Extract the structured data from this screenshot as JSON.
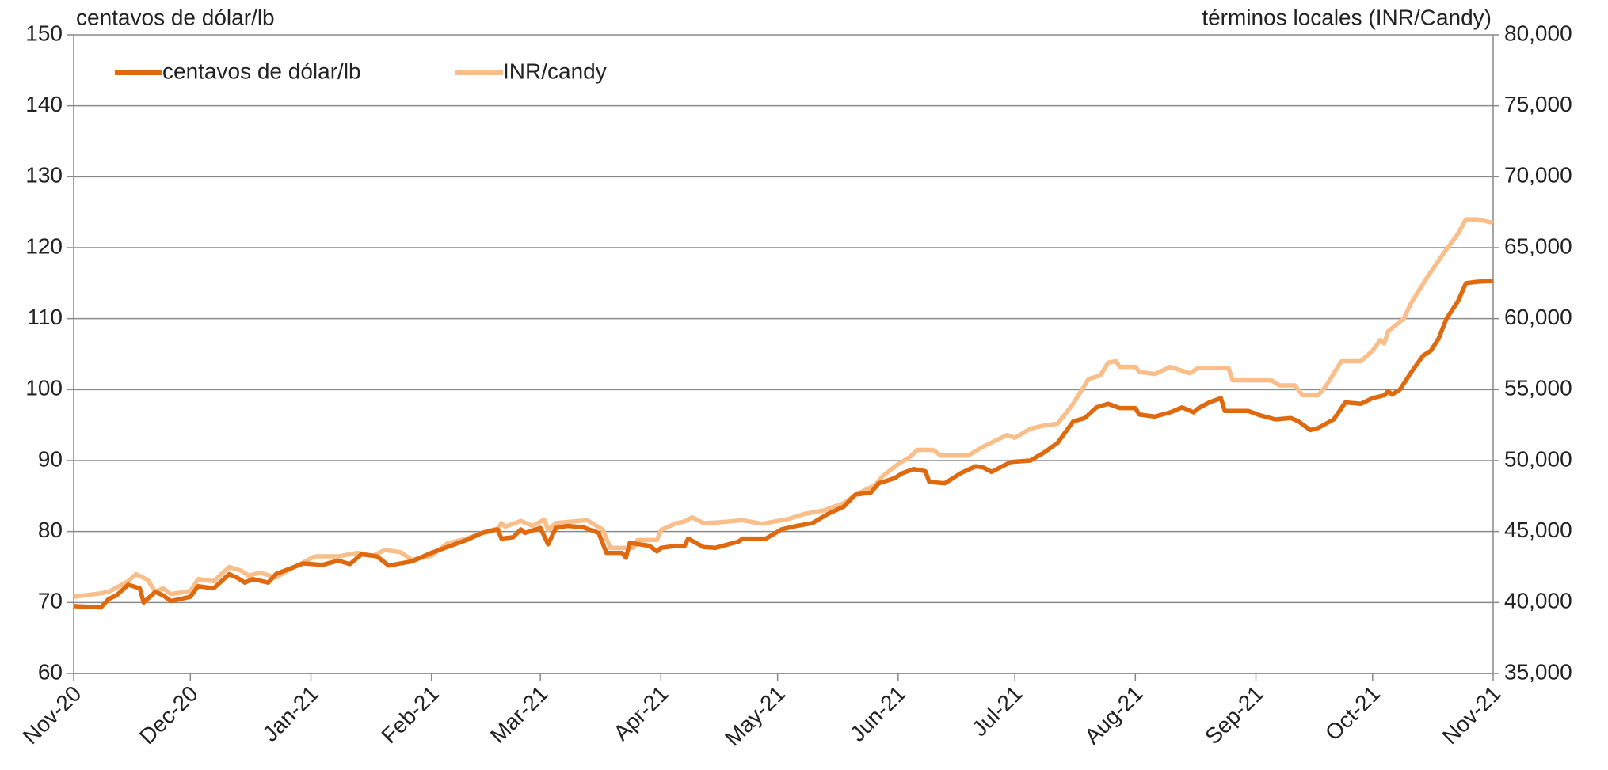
{
  "chart_data": {
    "type": "line",
    "ylabel": "centavos de dólar/lb",
    "y2label": "términos locales (INR/Candy)",
    "xlim": [
      0,
      365
    ],
    "xticks": [
      {
        "value": 0,
        "label": "Nov-20"
      },
      {
        "value": 30,
        "label": "Dec-20"
      },
      {
        "value": 61,
        "label": "Jan-21"
      },
      {
        "value": 92,
        "label": "Feb-21"
      },
      {
        "value": 120,
        "label": "Mar-21"
      },
      {
        "value": 151,
        "label": "Apr-21"
      },
      {
        "value": 181,
        "label": "May-21"
      },
      {
        "value": 212,
        "label": "Jun-21"
      },
      {
        "value": 242,
        "label": "Jul-21"
      },
      {
        "value": 273,
        "label": "Aug-21"
      },
      {
        "value": 304,
        "label": "Sep-21"
      },
      {
        "value": 334,
        "label": "Oct-21"
      },
      {
        "value": 365,
        "label": "Nov-21"
      }
    ],
    "ylim": [
      60,
      150
    ],
    "yticks": [
      60,
      70,
      80,
      90,
      100,
      110,
      120,
      130,
      140,
      150
    ],
    "y2lim": [
      35000,
      80000
    ],
    "y2ticks": [
      {
        "value": 35000,
        "label": "35,000"
      },
      {
        "value": 40000,
        "label": "40,000"
      },
      {
        "value": 45000,
        "label": "45,000"
      },
      {
        "value": 50000,
        "label": "50,000"
      },
      {
        "value": 55000,
        "label": "55,000"
      },
      {
        "value": 60000,
        "label": "60,000"
      },
      {
        "value": 65000,
        "label": "65,000"
      },
      {
        "value": 70000,
        "label": "70,000"
      },
      {
        "value": 75000,
        "label": "75,000"
      },
      {
        "value": 80000,
        "label": "80,000"
      }
    ],
    "grid": true,
    "legend": "upper left",
    "series": [
      {
        "name": "centavos de dólar/lb",
        "color": "#e0690e",
        "axis": "y",
        "x": [
          0,
          7,
          9,
          11,
          14,
          17,
          18,
          21,
          23,
          25,
          30,
          32,
          36,
          40,
          42,
          44,
          46,
          50,
          52,
          59,
          64,
          68,
          71,
          74,
          78,
          81,
          87,
          92,
          97,
          101,
          105,
          109,
          110,
          113,
          115,
          116,
          120,
          122,
          124,
          127,
          131,
          135,
          137,
          141,
          142,
          143,
          148,
          150,
          151,
          155,
          157,
          158,
          162,
          165,
          171,
          172,
          178,
          182,
          186,
          190,
          194,
          198,
          201,
          205,
          207,
          211,
          213,
          216,
          219,
          220,
          224,
          228,
          232,
          234,
          236,
          241,
          246,
          250,
          253,
          257,
          260,
          263,
          266,
          269,
          273,
          274,
          278,
          282,
          285,
          288,
          289,
          292,
          295,
          296,
          302,
          305,
          309,
          313,
          315,
          318,
          320,
          324,
          327,
          331,
          334,
          337,
          338,
          339,
          341,
          344,
          347,
          349,
          351,
          353,
          356,
          358,
          361,
          365
        ],
        "values": [
          69.5,
          69.3,
          70.5,
          71,
          72.5,
          72,
          70,
          71.5,
          71,
          70.2,
          70.8,
          72.3,
          72,
          74,
          73.5,
          72.8,
          73.3,
          72.8,
          74,
          75.5,
          75.3,
          75.9,
          75.4,
          76.8,
          76.5,
          75.2,
          75.8,
          77,
          78,
          78.8,
          79.8,
          80.3,
          79,
          79.2,
          80.3,
          79.8,
          80.5,
          78.2,
          80.5,
          80.8,
          80.6,
          79.8,
          77,
          77,
          76.3,
          78.4,
          78,
          77.2,
          77.7,
          78,
          77.9,
          79,
          77.8,
          77.7,
          78.6,
          79,
          79,
          80.3,
          80.8,
          81.2,
          82.5,
          83.5,
          85.2,
          85.5,
          86.8,
          87.5,
          88.2,
          88.8,
          88.5,
          87,
          86.8,
          88.2,
          89.2,
          89,
          88.4,
          89.8,
          90,
          91.3,
          92.5,
          95.5,
          96,
          97.5,
          98,
          97.4,
          97.4,
          96.5,
          96.2,
          96.8,
          97.5,
          96.8,
          97.3,
          98.2,
          98.8,
          97,
          97,
          96.4,
          95.8,
          96,
          95.5,
          94.3,
          94.6,
          95.8,
          98.2,
          98,
          98.8,
          99.2,
          99.8,
          99.3,
          100,
          102.5,
          104.8,
          105.5,
          107.2,
          110,
          112.5,
          115,
          115.2,
          115.3
        ]
      },
      {
        "name": "INR/candy",
        "color": "#f9be8a",
        "axis": "y2",
        "x": [
          0,
          7,
          9,
          14,
          16,
          19,
          21,
          23,
          25,
          30,
          32,
          36,
          40,
          43,
          45,
          48,
          52,
          55,
          62,
          68,
          73,
          77,
          80,
          84,
          87,
          92,
          96,
          101,
          106,
          109,
          110,
          111,
          115,
          118,
          121,
          122,
          124,
          132,
          136,
          138,
          144,
          145,
          150,
          151,
          155,
          157,
          159,
          162,
          166,
          172,
          177,
          184,
          188,
          193,
          198,
          201,
          206,
          208,
          212,
          215,
          217,
          221,
          223,
          230,
          234,
          240,
          242,
          246,
          250,
          253,
          257,
          261,
          264,
          266,
          268,
          269,
          273,
          274,
          278,
          282,
          287,
          289,
          297,
          298,
          308,
          310,
          314,
          316,
          320,
          322,
          326,
          331,
          334,
          336,
          337,
          338,
          342,
          344,
          348,
          352,
          356,
          358,
          361,
          365
        ],
        "values": [
          40400,
          40650,
          40750,
          41500,
          42000,
          41600,
          40750,
          41000,
          40600,
          40800,
          41650,
          41500,
          42500,
          42250,
          41900,
          42100,
          41750,
          42250,
          43250,
          43250,
          43500,
          43300,
          43700,
          43550,
          43000,
          43300,
          44150,
          44500,
          45000,
          45200,
          45600,
          45350,
          45750,
          45400,
          45850,
          45100,
          45600,
          45800,
          45150,
          43850,
          43850,
          44400,
          44400,
          45100,
          45600,
          45700,
          46000,
          45600,
          45650,
          45800,
          45550,
          45900,
          46250,
          46500,
          47000,
          47600,
          48250,
          48900,
          49750,
          50250,
          50750,
          50750,
          50350,
          50350,
          51000,
          51800,
          51600,
          52250,
          52500,
          52600,
          54000,
          55750,
          56000,
          56900,
          57000,
          56600,
          56600,
          56250,
          56100,
          56600,
          56150,
          56500,
          56500,
          55650,
          55650,
          55300,
          55300,
          54600,
          54600,
          55250,
          57000,
          57000,
          57750,
          58500,
          58250,
          59100,
          60000,
          61150,
          62900,
          64500,
          66000,
          67000,
          67000,
          66750
        ]
      }
    ]
  }
}
